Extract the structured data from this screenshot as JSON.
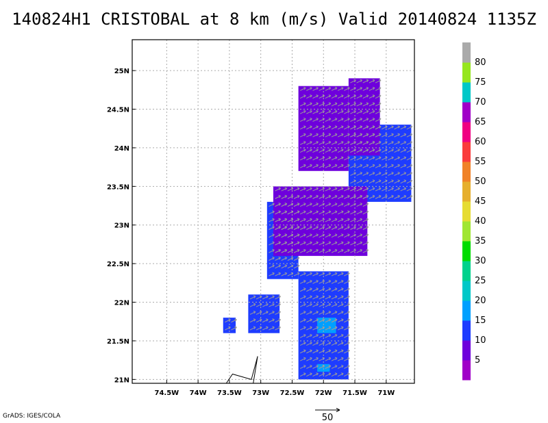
{
  "title": "140824H1 CRISTOBAL at 8 km (m/s) Valid 20140824 1135Z",
  "credit": "GrADS: IGES/COLA",
  "chart_data": {
    "type": "heatmap",
    "title": "140824H1 CRISTOBAL at 8 km (m/s) Valid 20140824 1135Z",
    "variable": "wind speed with wind vectors",
    "units": "m/s",
    "xlim": [
      -75.05,
      -70.55
    ],
    "ylim": [
      20.95,
      25.4
    ],
    "x_ticks": [
      -74.5,
      -74.0,
      -73.5,
      -73.0,
      -72.5,
      -72.0,
      -71.5,
      -71.0
    ],
    "x_tick_labels": [
      "74.5W",
      "74W",
      "73.5W",
      "73W",
      "72.5W",
      "72W",
      "71.5W",
      "71W"
    ],
    "y_ticks": [
      21.0,
      21.5,
      22.0,
      22.5,
      23.0,
      23.5,
      24.0,
      24.5,
      25.0
    ],
    "y_tick_labels": [
      "21N",
      "21.5N",
      "22N",
      "22.5N",
      "23N",
      "23.5N",
      "24N",
      "24.5N",
      "25N"
    ],
    "grid": true,
    "colorbar": {
      "labels": [
        "5",
        "10",
        "15",
        "20",
        "25",
        "30",
        "35",
        "40",
        "45",
        "50",
        "55",
        "60",
        "65",
        "70",
        "75",
        "80"
      ],
      "colors": [
        "#a000c8",
        "#6e00dc",
        "#1e3cff",
        "#00a0ff",
        "#00c8c8",
        "#00d28c",
        "#00dc00",
        "#a0e632",
        "#e6dc32",
        "#e6af2d",
        "#f08228",
        "#fa3c3c",
        "#f00082",
        "#a000c8",
        "#00c8c8",
        "#96e61e",
        "#aaaaaa"
      ]
    },
    "reference_vector": {
      "label": "50",
      "speed": 50
    },
    "wind_regions": [
      {
        "speed_class": "10-15",
        "color": "#1e3cff",
        "lon_range": [
          -72.4,
          -71.6
        ],
        "lat_range": [
          21.0,
          22.4
        ]
      },
      {
        "speed_class": "10-15",
        "color": "#1e3cff",
        "lon_range": [
          -72.9,
          -72.4
        ],
        "lat_range": [
          22.3,
          23.3
        ]
      },
      {
        "speed_class": "10-15",
        "color": "#1e3cff",
        "lon_range": [
          -71.6,
          -70.6
        ],
        "lat_range": [
          23.3,
          24.3
        ]
      },
      {
        "speed_class": "10-15",
        "color": "#1e3cff",
        "lon_range": [
          -73.6,
          -73.4
        ],
        "lat_range": [
          21.6,
          21.8
        ]
      },
      {
        "speed_class": "10-15",
        "color": "#1e3cff",
        "lon_range": [
          -73.2,
          -72.7
        ],
        "lat_range": [
          21.6,
          22.1
        ]
      },
      {
        "speed_class": "5-10",
        "color": "#6e00dc",
        "lon_range": [
          -72.8,
          -71.3
        ],
        "lat_range": [
          22.6,
          23.5
        ]
      },
      {
        "speed_class": "5-10",
        "color": "#6e00dc",
        "lon_range": [
          -72.4,
          -71.6
        ],
        "lat_range": [
          23.7,
          24.8
        ]
      },
      {
        "speed_class": "5-10",
        "color": "#6e00dc",
        "lon_range": [
          -71.6,
          -71.1
        ],
        "lat_range": [
          23.9,
          24.9
        ]
      },
      {
        "speed_class": "15-20",
        "color": "#00a0ff",
        "lon_range": [
          -72.1,
          -71.8
        ],
        "lat_range": [
          21.6,
          21.8
        ]
      },
      {
        "speed_class": "15-20",
        "color": "#00a0ff",
        "lon_range": [
          -72.1,
          -71.9
        ],
        "lat_range": [
          21.1,
          21.2
        ]
      }
    ]
  }
}
